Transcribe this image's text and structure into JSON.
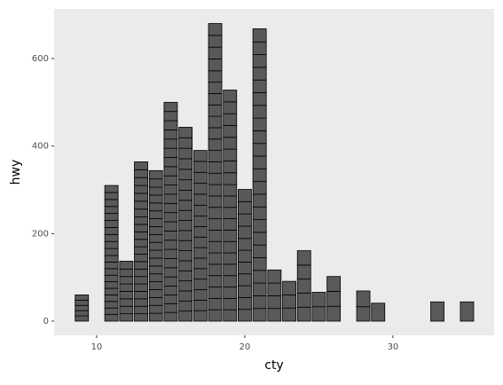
{
  "chart_data": {
    "type": "stacked-bar",
    "xlabel": "cty",
    "ylabel": "hwy",
    "x": [
      9,
      11,
      12,
      13,
      14,
      15,
      16,
      17,
      18,
      19,
      20,
      21,
      22,
      23,
      24,
      25,
      26,
      28,
      29,
      33,
      35
    ],
    "segments": [
      [
        12,
        12,
        12,
        12,
        12
      ],
      [
        15,
        15,
        15,
        15,
        15,
        15,
        15,
        15,
        15,
        15,
        16,
        16,
        16,
        16,
        16,
        16,
        16,
        16,
        16,
        16
      ],
      [
        17,
        17,
        17,
        17,
        17,
        17,
        17,
        18
      ],
      [
        17,
        17,
        17,
        17,
        17,
        17,
        17,
        17,
        17,
        17,
        17,
        17,
        17,
        17,
        18,
        18,
        18,
        18,
        18,
        18,
        18
      ],
      [
        18,
        18,
        18,
        18,
        18,
        18,
        18,
        18,
        18,
        18,
        18,
        18,
        18,
        18,
        18,
        18,
        18,
        19,
        19
      ],
      [
        20,
        20,
        20,
        20,
        21,
        21,
        21,
        21,
        21,
        21,
        21,
        21,
        21,
        21,
        21,
        21,
        21,
        21,
        21,
        21,
        21,
        21,
        21,
        21
      ],
      [
        23,
        23,
        23,
        23,
        23,
        23,
        23,
        23,
        23,
        23,
        23,
        23,
        23,
        24,
        24,
        24,
        24,
        24,
        24
      ],
      [
        24,
        24,
        24,
        24,
        24,
        24,
        24,
        24,
        24,
        24,
        25,
        25,
        25,
        25,
        25,
        25
      ],
      [
        26,
        26,
        26,
        26,
        26,
        26,
        26,
        26,
        26,
        26,
        26,
        26,
        26,
        26,
        26,
        26,
        26,
        26,
        26,
        26,
        26,
        26,
        27,
        27,
        27,
        27
      ],
      [
        26,
        26,
        26,
        26,
        26,
        26,
        26,
        26,
        26,
        26,
        26,
        26,
        27,
        27,
        27,
        27,
        27,
        27,
        27,
        27
      ],
      [
        27,
        27,
        27,
        27,
        27,
        27,
        27,
        28,
        28,
        28,
        28
      ],
      [
        29,
        29,
        29,
        29,
        29,
        29,
        29,
        29,
        29,
        29,
        29,
        29,
        29,
        29,
        29,
        29,
        29,
        29,
        29,
        29,
        29,
        29,
        30
      ],
      [
        29,
        29,
        29,
        30
      ],
      [
        30,
        30,
        31
      ],
      [
        32,
        32,
        32,
        32,
        33
      ],
      [
        33,
        33
      ],
      [
        34,
        34,
        34
      ],
      [
        33,
        36
      ],
      [
        41
      ],
      [
        44
      ],
      [
        44
      ]
    ],
    "bar_width": 0.9,
    "color": "#595959",
    "xlim": [
      7.13,
      36.83
    ],
    "xticks": [
      10,
      20,
      30
    ],
    "ylim": [
      -32.4,
      713.5
    ],
    "yticks": [
      0,
      200,
      400,
      600
    ],
    "grid": true
  }
}
